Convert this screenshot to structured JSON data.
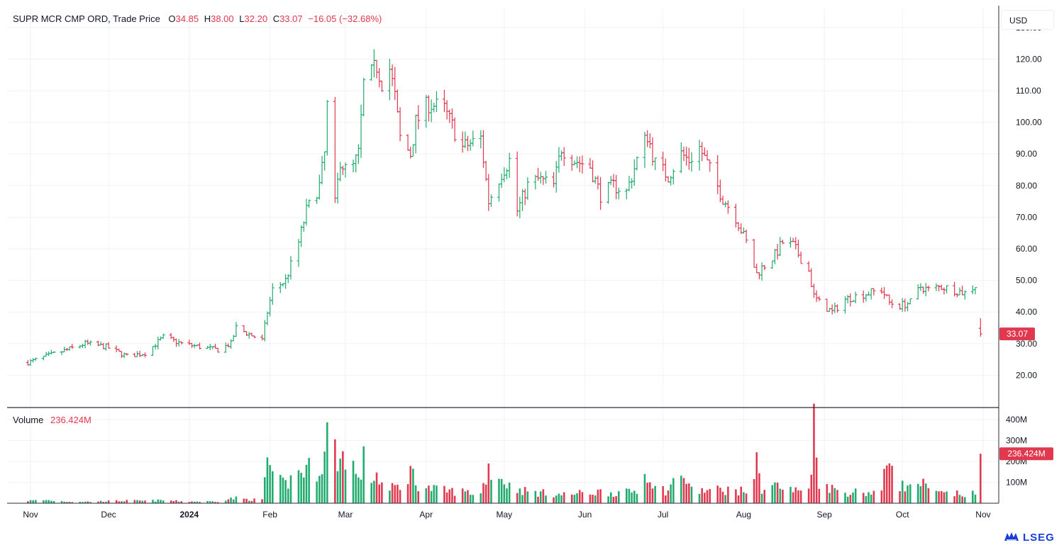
{
  "header": {
    "instrument": "SUPR MCR CMP ORD, Trade Price",
    "open_label": "O",
    "open_value": "34.85",
    "high_label": "H",
    "high_value": "38.00",
    "low_label": "L",
    "low_value": "32.20",
    "close_label": "C",
    "close_value": "33.07",
    "change": "−16.05 (−32.68%)"
  },
  "currency_button": "USD",
  "volume_legend": {
    "label": "Volume",
    "value": "236.424M"
  },
  "last_price_tag": "33.07",
  "last_volume_tag": "236.424M",
  "brand": "LSEG",
  "colors": {
    "up": "#22ab6e",
    "down": "#e0384f",
    "grid": "#f0f2f5",
    "axis_line": "#2a2e39"
  },
  "chart_data": {
    "type": "ohlc",
    "price_axis": {
      "ticks": [
        20,
        30,
        40,
        50,
        60,
        70,
        80,
        90,
        100,
        110,
        120,
        130
      ],
      "tick_labels": [
        "20.00",
        "30.00",
        "40.00",
        "50.00",
        "60.00",
        "70.00",
        "80.00",
        "90.00",
        "100.00",
        "110.00",
        "120.00",
        "130.00"
      ],
      "range": [
        10,
        136
      ]
    },
    "volume_axis": {
      "ticks": [
        100,
        200,
        300,
        400
      ],
      "tick_labels": [
        "100M",
        "200M",
        "300M",
        "400M"
      ],
      "unit": "M",
      "range": [
        0,
        420
      ]
    },
    "x_ticks": [
      {
        "label": "Nov",
        "date": "2023-11-01",
        "bold": false
      },
      {
        "label": "Dec",
        "date": "2023-12-01",
        "bold": false
      },
      {
        "label": "2024",
        "date": "2024-01-01",
        "bold": true
      },
      {
        "label": "Feb",
        "date": "2024-02-01",
        "bold": false
      },
      {
        "label": "Mar",
        "date": "2024-03-01",
        "bold": false
      },
      {
        "label": "Apr",
        "date": "2024-04-01",
        "bold": false
      },
      {
        "label": "May",
        "date": "2024-05-01",
        "bold": false
      },
      {
        "label": "Jun",
        "date": "2024-06-01",
        "bold": false
      },
      {
        "label": "Jul",
        "date": "2024-07-01",
        "bold": false
      },
      {
        "label": "Aug",
        "date": "2024-08-01",
        "bold": false
      },
      {
        "label": "Sep",
        "date": "2024-09-01",
        "bold": false
      },
      {
        "label": "Oct",
        "date": "2024-10-01",
        "bold": false
      },
      {
        "label": "Nov",
        "date": "2024-11-01",
        "bold": false
      }
    ],
    "anchors": [
      [
        "2023-10-31",
        24,
        12
      ],
      [
        "2023-11-07",
        26,
        15
      ],
      [
        "2023-11-15",
        28,
        8
      ],
      [
        "2023-11-22",
        30,
        7
      ],
      [
        "2023-11-30",
        29,
        10
      ],
      [
        "2023-12-08",
        26,
        12
      ],
      [
        "2023-12-15",
        27,
        11
      ],
      [
        "2023-12-22",
        32,
        14
      ],
      [
        "2023-12-29",
        30,
        9
      ],
      [
        "2024-01-05",
        29,
        8
      ],
      [
        "2024-01-12",
        28,
        9
      ],
      [
        "2024-01-17",
        30,
        22
      ],
      [
        "2024-01-19",
        35,
        24
      ],
      [
        "2024-01-24",
        33,
        18
      ],
      [
        "2024-01-29",
        31,
        15
      ],
      [
        "2024-01-31",
        40,
        220
      ],
      [
        "2024-02-02",
        47,
        110
      ],
      [
        "2024-02-07",
        50,
        90
      ],
      [
        "2024-02-12",
        62,
        150
      ],
      [
        "2024-02-15",
        72,
        160
      ],
      [
        "2024-02-20",
        80,
        170
      ],
      [
        "2024-02-22",
        90,
        230
      ],
      [
        "2024-02-23",
        105,
        330
      ],
      [
        "2024-02-26",
        74,
        250
      ],
      [
        "2024-02-28",
        88,
        200
      ],
      [
        "2024-03-01",
        85,
        250
      ],
      [
        "2024-03-04",
        86,
        180
      ],
      [
        "2024-03-06",
        90,
        100
      ],
      [
        "2024-03-08",
        112,
        200
      ],
      [
        "2024-03-11",
        115,
        120
      ],
      [
        "2024-03-13",
        118,
        140
      ],
      [
        "2024-03-15",
        113,
        90
      ],
      [
        "2024-03-18",
        117,
        60
      ],
      [
        "2024-03-20",
        108,
        80
      ],
      [
        "2024-03-22",
        95,
        70
      ],
      [
        "2024-03-26",
        90,
        160
      ],
      [
        "2024-03-28",
        100,
        100
      ],
      [
        "2024-04-02",
        106,
        70
      ],
      [
        "2024-04-08",
        104,
        60
      ],
      [
        "2024-04-15",
        92,
        55
      ],
      [
        "2024-04-22",
        95,
        45
      ],
      [
        "2024-04-25",
        75,
        170
      ],
      [
        "2024-04-30",
        84,
        120
      ],
      [
        "2024-05-03",
        88,
        80
      ],
      [
        "2024-05-06",
        72,
        70
      ],
      [
        "2024-05-10",
        80,
        55
      ],
      [
        "2024-05-14",
        82,
        50
      ],
      [
        "2024-05-20",
        80,
        45
      ],
      [
        "2024-05-23",
        92,
        40
      ],
      [
        "2024-05-28",
        88,
        45
      ],
      [
        "2024-06-03",
        86,
        50
      ],
      [
        "2024-06-07",
        77,
        55
      ],
      [
        "2024-06-12",
        80,
        50
      ],
      [
        "2024-06-17",
        78,
        50
      ],
      [
        "2024-06-21",
        88,
        60
      ],
      [
        "2024-06-25",
        96,
        160
      ],
      [
        "2024-06-28",
        87,
        70
      ],
      [
        "2024-07-03",
        83,
        60
      ],
      [
        "2024-07-08",
        90,
        160
      ],
      [
        "2024-07-11",
        88,
        70
      ],
      [
        "2024-07-15",
        92,
        60
      ],
      [
        "2024-07-19",
        85,
        60
      ],
      [
        "2024-07-24",
        76,
        65
      ],
      [
        "2024-07-29",
        70,
        60
      ],
      [
        "2024-08-02",
        62,
        55
      ],
      [
        "2024-08-06",
        52,
        180
      ],
      [
        "2024-08-08",
        54,
        70
      ],
      [
        "2024-08-13",
        58,
        90
      ],
      [
        "2024-08-16",
        62,
        70
      ],
      [
        "2024-08-20",
        61,
        60
      ],
      [
        "2024-08-23",
        57,
        60
      ],
      [
        "2024-08-26",
        53,
        70
      ],
      [
        "2024-08-28",
        45,
        370
      ],
      [
        "2024-08-30",
        43,
        110
      ],
      [
        "2024-09-04",
        40,
        70
      ],
      [
        "2024-09-09",
        44,
        50
      ],
      [
        "2024-09-13",
        45,
        55
      ],
      [
        "2024-09-18",
        46,
        50
      ],
      [
        "2024-09-23",
        47,
        60
      ],
      [
        "2024-09-26",
        43,
        240
      ],
      [
        "2024-09-30",
        42,
        90
      ],
      [
        "2024-10-04",
        43,
        70
      ],
      [
        "2024-10-08",
        48,
        100
      ],
      [
        "2024-10-11",
        47,
        60
      ],
      [
        "2024-10-16",
        48,
        45
      ],
      [
        "2024-10-21",
        47,
        45
      ],
      [
        "2024-10-25",
        46,
        40
      ],
      [
        "2024-10-30",
        49,
        45
      ]
    ],
    "last_bar": {
      "date": "2024-10-31",
      "open": 34.85,
      "high": 38.0,
      "low": 32.2,
      "close": 33.07,
      "volume": 236.424
    }
  }
}
